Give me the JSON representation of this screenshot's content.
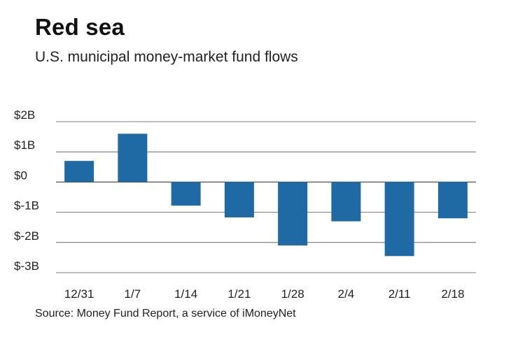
{
  "title": "Red sea",
  "subtitle": "U.S. municipal money-market fund flows",
  "source": "Source: Money Fund Report, a service of iMoneyNet",
  "colors": {
    "bar": "#1f6aa5",
    "grid": "#555555",
    "text": "#222222"
  },
  "chart_data": {
    "type": "bar",
    "title": "Red sea",
    "subtitle": "U.S. municipal money-market fund flows",
    "xlabel": "",
    "ylabel": "",
    "units": "$B",
    "categories": [
      "12/31",
      "1/7",
      "1/14",
      "1/21",
      "1/28",
      "2/4",
      "2/11",
      "2/18"
    ],
    "values": [
      0.7,
      1.6,
      -0.78,
      -1.17,
      -2.1,
      -1.3,
      -2.45,
      -1.2
    ],
    "ylim": [
      -3,
      2
    ],
    "yticks": [
      2,
      1,
      0,
      -1,
      -2,
      -3
    ],
    "ytick_labels": [
      "$2B",
      "$1B",
      "$0",
      "$-1B",
      "$-2B",
      "$-3B"
    ],
    "grid": true,
    "legend": "none"
  }
}
